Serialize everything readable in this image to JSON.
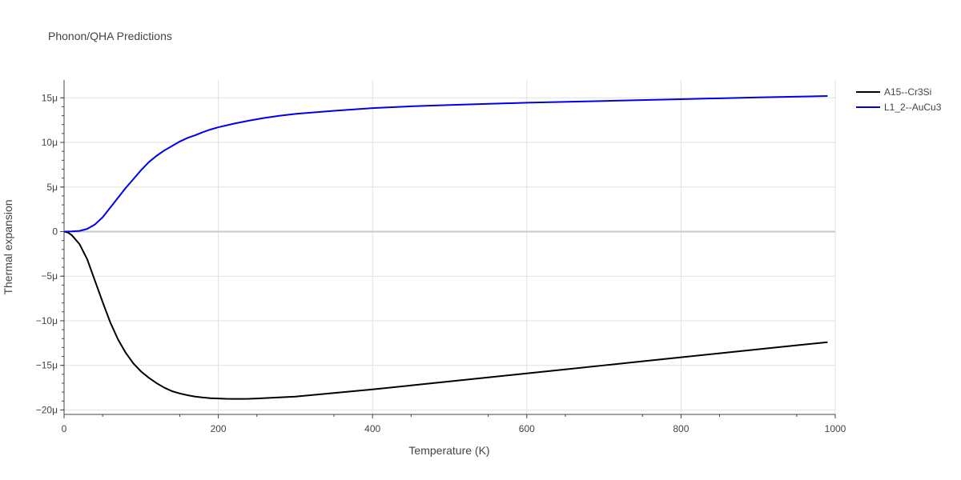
{
  "chart_data": {
    "type": "line",
    "title": "Phonon/QHA Predictions",
    "xlabel": "Temperature (K)",
    "ylabel": "Thermal expansion",
    "xlim": [
      0,
      1000
    ],
    "ylim": [
      -2.05e-05,
      1.7e-05
    ],
    "x_ticks": [
      0,
      200,
      400,
      600,
      800,
      1000
    ],
    "x_tick_labels": [
      "0",
      "200",
      "400",
      "600",
      "800",
      "1000"
    ],
    "y_ticks": [
      -2e-05,
      -1.5e-05,
      -1e-05,
      -5e-06,
      0,
      5e-06,
      1e-05,
      1.5e-05
    ],
    "y_tick_labels": [
      "−20μ",
      "−15μ",
      "−10μ",
      "−5μ",
      "0",
      "5μ",
      "10μ",
      "15μ"
    ],
    "grid": true,
    "legend_position": "top-right",
    "series": [
      {
        "name": "A15--Cr3Si",
        "color": "#000000",
        "x": [
          0,
          5,
          10,
          20,
          30,
          40,
          50,
          60,
          70,
          80,
          90,
          100,
          110,
          120,
          130,
          140,
          150,
          160,
          170,
          180,
          190,
          200,
          210,
          220,
          230,
          240,
          250,
          300,
          350,
          400,
          450,
          500,
          550,
          600,
          650,
          700,
          750,
          800,
          850,
          900,
          950,
          990
        ],
        "y": [
          0,
          -1e-07,
          -4e-07,
          -1.4e-06,
          -3.1e-06,
          -5.5e-06,
          -7.9e-06,
          -1.02e-05,
          -1.21e-05,
          -1.36e-05,
          -1.48e-05,
          -1.57e-05,
          -1.64e-05,
          -1.7e-05,
          -1.75e-05,
          -1.79e-05,
          -1.815e-05,
          -1.835e-05,
          -1.85e-05,
          -1.86e-05,
          -1.868e-05,
          -1.872e-05,
          -1.875e-05,
          -1.876e-05,
          -1.876e-05,
          -1.875e-05,
          -1.872e-05,
          -1.85e-05,
          -1.81e-05,
          -1.77e-05,
          -1.725e-05,
          -1.68e-05,
          -1.635e-05,
          -1.59e-05,
          -1.545e-05,
          -1.5e-05,
          -1.455e-05,
          -1.41e-05,
          -1.365e-05,
          -1.32e-05,
          -1.275e-05,
          -1.24e-05
        ]
      },
      {
        "name": "L1_2--AuCu3",
        "color": "#0000ee",
        "x": [
          0,
          10,
          20,
          30,
          40,
          50,
          60,
          70,
          80,
          90,
          100,
          110,
          120,
          130,
          140,
          150,
          160,
          170,
          180,
          190,
          200,
          220,
          240,
          260,
          280,
          300,
          350,
          400,
          450,
          500,
          600,
          700,
          800,
          900,
          990
        ],
        "y": [
          0,
          2e-08,
          8e-08,
          3e-07,
          8e-07,
          1.6e-06,
          2.7e-06,
          3.8e-06,
          4.9e-06,
          5.9e-06,
          6.9e-06,
          7.8e-06,
          8.5e-06,
          9.1e-06,
          9.6e-06,
          1.01e-05,
          1.05e-05,
          1.08e-05,
          1.115e-05,
          1.145e-05,
          1.17e-05,
          1.21e-05,
          1.245e-05,
          1.275e-05,
          1.3e-05,
          1.32e-05,
          1.355e-05,
          1.385e-05,
          1.405e-05,
          1.42e-05,
          1.445e-05,
          1.465e-05,
          1.485e-05,
          1.505e-05,
          1.52e-05
        ]
      }
    ]
  }
}
